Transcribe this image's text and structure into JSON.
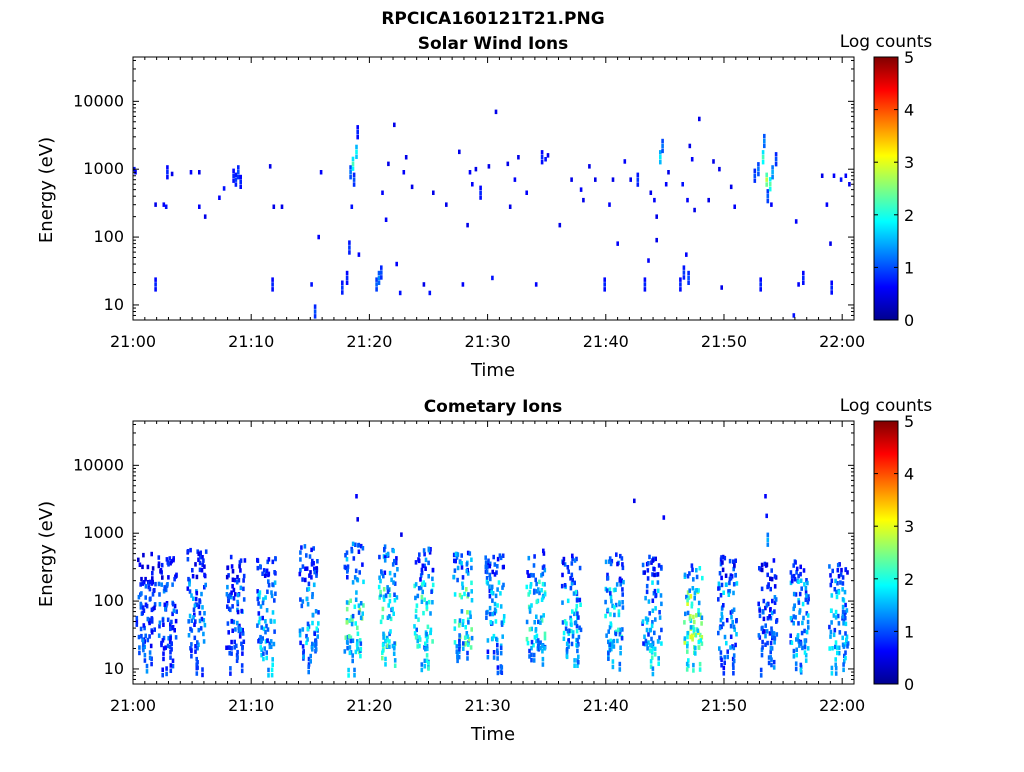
{
  "figure": {
    "title": "RPCICA160121T21.PNG"
  },
  "colormap": [
    "#00008f",
    "#0000ff",
    "#0080ff",
    "#00ffff",
    "#80ff80",
    "#ffff00",
    "#ff8000",
    "#ff0000",
    "#800000"
  ],
  "chart_data": [
    {
      "type": "heatmap",
      "title": "Solar Wind Ions",
      "xlabel": "Time",
      "ylabel": "Energy (eV)",
      "x_ticks": [
        "21:00",
        "21:10",
        "21:20",
        "21:30",
        "21:40",
        "21:50",
        "22:00"
      ],
      "y_ticks": [
        "10",
        "100",
        "1000",
        "10000"
      ],
      "y_scale": "log",
      "ylim": [
        6,
        45000
      ],
      "xlim_minutes": [
        0,
        61
      ],
      "colorbar": {
        "label": "Log counts",
        "ticks": [
          "0",
          "1",
          "2",
          "3",
          "4",
          "5"
        ],
        "range": [
          0,
          5
        ]
      },
      "points": [
        {
          "t": 0.0,
          "e": 1000,
          "v": 0.7
        },
        {
          "t": 0.1,
          "e": 900,
          "v": 0.6
        },
        {
          "t": 1.8,
          "e": 20,
          "v": 0.8
        },
        {
          "t": 1.8,
          "e": 300,
          "v": 0.5
        },
        {
          "t": 2.5,
          "e": 300,
          "v": 0.6
        },
        {
          "t": 2.7,
          "e": 280,
          "v": 0.7
        },
        {
          "t": 2.8,
          "e": 900,
          "v": 0.8
        },
        {
          "t": 3.2,
          "e": 850,
          "v": 0.5
        },
        {
          "t": 4.8,
          "e": 900,
          "v": 0.6
        },
        {
          "t": 5.5,
          "e": 900,
          "v": 0.5
        },
        {
          "t": 5.5,
          "e": 280,
          "v": 0.6
        },
        {
          "t": 6.0,
          "e": 200,
          "v": 0.5
        },
        {
          "t": 7.2,
          "e": 380,
          "v": 0.6
        },
        {
          "t": 7.6,
          "e": 520,
          "v": 0.7
        },
        {
          "t": 8.4,
          "e": 800,
          "v": 0.8
        },
        {
          "t": 8.6,
          "e": 700,
          "v": 0.9
        },
        {
          "t": 8.8,
          "e": 900,
          "v": 1.0
        },
        {
          "t": 9.0,
          "e": 650,
          "v": 0.8
        },
        {
          "t": 11.5,
          "e": 1100,
          "v": 0.5
        },
        {
          "t": 11.7,
          "e": 20,
          "v": 0.8
        },
        {
          "t": 11.8,
          "e": 280,
          "v": 0.5
        },
        {
          "t": 12.5,
          "e": 280,
          "v": 0.5
        },
        {
          "t": 15.0,
          "e": 20,
          "v": 0.7
        },
        {
          "t": 15.3,
          "e": 8,
          "v": 1.0
        },
        {
          "t": 15.6,
          "e": 100,
          "v": 0.6
        },
        {
          "t": 15.8,
          "e": 900,
          "v": 0.6
        },
        {
          "t": 17.6,
          "e": 18,
          "v": 0.9
        },
        {
          "t": 18.0,
          "e": 25,
          "v": 0.8
        },
        {
          "t": 18.2,
          "e": 70,
          "v": 0.9
        },
        {
          "t": 18.3,
          "e": 900,
          "v": 1.2
        },
        {
          "t": 18.5,
          "e": 1200,
          "v": 2.2
        },
        {
          "t": 18.6,
          "e": 700,
          "v": 1.0
        },
        {
          "t": 18.8,
          "e": 1800,
          "v": 1.9
        },
        {
          "t": 18.9,
          "e": 3500,
          "v": 0.8
        },
        {
          "t": 19.0,
          "e": 55,
          "v": 0.6
        },
        {
          "t": 18.4,
          "e": 280,
          "v": 0.7
        },
        {
          "t": 20.5,
          "e": 20,
          "v": 1.1
        },
        {
          "t": 20.7,
          "e": 25,
          "v": 1.3
        },
        {
          "t": 20.9,
          "e": 30,
          "v": 1.0
        },
        {
          "t": 21.0,
          "e": 450,
          "v": 0.6
        },
        {
          "t": 21.3,
          "e": 180,
          "v": 0.6
        },
        {
          "t": 21.5,
          "e": 1200,
          "v": 0.5
        },
        {
          "t": 22.0,
          "e": 4500,
          "v": 0.5
        },
        {
          "t": 22.2,
          "e": 40,
          "v": 0.6
        },
        {
          "t": 22.5,
          "e": 15,
          "v": 0.7
        },
        {
          "t": 22.8,
          "e": 900,
          "v": 0.6
        },
        {
          "t": 23.0,
          "e": 1500,
          "v": 0.5
        },
        {
          "t": 23.5,
          "e": 550,
          "v": 0.5
        },
        {
          "t": 24.5,
          "e": 20,
          "v": 0.5
        },
        {
          "t": 25.0,
          "e": 15,
          "v": 0.7
        },
        {
          "t": 25.3,
          "e": 450,
          "v": 0.5
        },
        {
          "t": 26.4,
          "e": 300,
          "v": 0.5
        },
        {
          "t": 27.5,
          "e": 1800,
          "v": 0.5
        },
        {
          "t": 27.8,
          "e": 20,
          "v": 0.6
        },
        {
          "t": 28.2,
          "e": 150,
          "v": 0.5
        },
        {
          "t": 28.4,
          "e": 900,
          "v": 0.6
        },
        {
          "t": 28.6,
          "e": 600,
          "v": 0.6
        },
        {
          "t": 28.9,
          "e": 1000,
          "v": 0.5
        },
        {
          "t": 29.3,
          "e": 450,
          "v": 0.8
        },
        {
          "t": 30.0,
          "e": 1100,
          "v": 0.5
        },
        {
          "t": 30.3,
          "e": 25,
          "v": 0.7
        },
        {
          "t": 30.6,
          "e": 7000,
          "v": 0.5
        },
        {
          "t": 31.8,
          "e": 280,
          "v": 0.5
        },
        {
          "t": 31.6,
          "e": 1200,
          "v": 0.5
        },
        {
          "t": 32.2,
          "e": 700,
          "v": 0.6
        },
        {
          "t": 32.5,
          "e": 1500,
          "v": 0.5
        },
        {
          "t": 33.2,
          "e": 450,
          "v": 0.6
        },
        {
          "t": 34.0,
          "e": 20,
          "v": 0.6
        },
        {
          "t": 34.5,
          "e": 1500,
          "v": 0.8
        },
        {
          "t": 34.8,
          "e": 1400,
          "v": 0.7
        },
        {
          "t": 35.0,
          "e": 1600,
          "v": 0.5
        },
        {
          "t": 36.0,
          "e": 150,
          "v": 0.5
        },
        {
          "t": 37.0,
          "e": 700,
          "v": 0.5
        },
        {
          "t": 37.8,
          "e": 500,
          "v": 0.6
        },
        {
          "t": 38.0,
          "e": 350,
          "v": 0.5
        },
        {
          "t": 38.5,
          "e": 1100,
          "v": 0.5
        },
        {
          "t": 39.0,
          "e": 700,
          "v": 0.5
        },
        {
          "t": 39.8,
          "e": 20,
          "v": 0.8
        },
        {
          "t": 40.2,
          "e": 300,
          "v": 0.6
        },
        {
          "t": 40.5,
          "e": 700,
          "v": 0.5
        },
        {
          "t": 40.9,
          "e": 80,
          "v": 0.6
        },
        {
          "t": 41.5,
          "e": 1300,
          "v": 0.6
        },
        {
          "t": 42.0,
          "e": 700,
          "v": 0.5
        },
        {
          "t": 42.6,
          "e": 700,
          "v": 0.9
        },
        {
          "t": 43.2,
          "e": 20,
          "v": 0.8
        },
        {
          "t": 43.5,
          "e": 45,
          "v": 0.6
        },
        {
          "t": 43.7,
          "e": 450,
          "v": 0.5
        },
        {
          "t": 44.0,
          "e": 350,
          "v": 0.6
        },
        {
          "t": 44.2,
          "e": 200,
          "v": 0.5
        },
        {
          "t": 44.5,
          "e": 1500,
          "v": 1.8
        },
        {
          "t": 44.7,
          "e": 2200,
          "v": 1.2
        },
        {
          "t": 44.2,
          "e": 90,
          "v": 0.5
        },
        {
          "t": 45.0,
          "e": 600,
          "v": 0.6
        },
        {
          "t": 45.2,
          "e": 900,
          "v": 0.5
        },
        {
          "t": 46.2,
          "e": 20,
          "v": 0.8
        },
        {
          "t": 46.5,
          "e": 30,
          "v": 0.9
        },
        {
          "t": 46.7,
          "e": 55,
          "v": 0.6
        },
        {
          "t": 46.9,
          "e": 25,
          "v": 1.0
        },
        {
          "t": 47.2,
          "e": 1400,
          "v": 0.6
        },
        {
          "t": 46.4,
          "e": 600,
          "v": 0.7
        },
        {
          "t": 46.8,
          "e": 350,
          "v": 0.6
        },
        {
          "t": 47.4,
          "e": 250,
          "v": 0.5
        },
        {
          "t": 47.0,
          "e": 2200,
          "v": 0.5
        },
        {
          "t": 47.8,
          "e": 5500,
          "v": 0.5
        },
        {
          "t": 48.6,
          "e": 350,
          "v": 0.5
        },
        {
          "t": 49.0,
          "e": 1300,
          "v": 0.5
        },
        {
          "t": 49.5,
          "e": 1000,
          "v": 0.5
        },
        {
          "t": 49.7,
          "e": 18,
          "v": 0.5
        },
        {
          "t": 50.5,
          "e": 550,
          "v": 0.5
        },
        {
          "t": 50.8,
          "e": 280,
          "v": 0.6
        },
        {
          "t": 52.5,
          "e": 800,
          "v": 1.0
        },
        {
          "t": 52.8,
          "e": 1000,
          "v": 1.2
        },
        {
          "t": 53.0,
          "e": 20,
          "v": 0.8
        },
        {
          "t": 53.2,
          "e": 1500,
          "v": 2.2
        },
        {
          "t": 53.3,
          "e": 2600,
          "v": 1.3
        },
        {
          "t": 53.5,
          "e": 700,
          "v": 2.8
        },
        {
          "t": 53.6,
          "e": 400,
          "v": 1.1
        },
        {
          "t": 53.8,
          "e": 600,
          "v": 2.3
        },
        {
          "t": 54.0,
          "e": 900,
          "v": 1.5
        },
        {
          "t": 54.3,
          "e": 1400,
          "v": 1.0
        },
        {
          "t": 53.9,
          "e": 300,
          "v": 0.6
        },
        {
          "t": 55.8,
          "e": 7,
          "v": 0.7
        },
        {
          "t": 56.0,
          "e": 170,
          "v": 0.6
        },
        {
          "t": 56.2,
          "e": 20,
          "v": 0.6
        },
        {
          "t": 56.6,
          "e": 25,
          "v": 0.8
        },
        {
          "t": 58.2,
          "e": 800,
          "v": 0.5
        },
        {
          "t": 58.6,
          "e": 300,
          "v": 0.6
        },
        {
          "t": 58.9,
          "e": 80,
          "v": 0.5
        },
        {
          "t": 59.0,
          "e": 18,
          "v": 0.8
        },
        {
          "t": 59.2,
          "e": 800,
          "v": 0.6
        },
        {
          "t": 59.8,
          "e": 700,
          "v": 0.7
        },
        {
          "t": 60.2,
          "e": 800,
          "v": 0.6
        },
        {
          "t": 60.5,
          "e": 600,
          "v": 0.5
        }
      ]
    },
    {
      "type": "heatmap",
      "title": "Cometary Ions",
      "xlabel": "Time",
      "ylabel": "Energy (eV)",
      "x_ticks": [
        "21:00",
        "21:10",
        "21:20",
        "21:30",
        "21:40",
        "21:50",
        "22:00"
      ],
      "y_ticks": [
        "10",
        "100",
        "1000",
        "10000"
      ],
      "y_scale": "log",
      "ylim": [
        6,
        45000
      ],
      "xlim_minutes": [
        0,
        61
      ],
      "colorbar": {
        "label": "Log counts",
        "ticks": [
          "0",
          "1",
          "2",
          "3",
          "4",
          "5"
        ],
        "range": [
          0,
          5
        ]
      },
      "bursts": [
        {
          "t": 1.0,
          "low": 14,
          "high": 500,
          "peak": 1.0,
          "hv": 1.3
        },
        {
          "t": 2.8,
          "low": 14,
          "high": 450,
          "peak": 1.2,
          "hv": 1.0
        },
        {
          "t": 5.3,
          "low": 14,
          "high": 600,
          "peak": 1.3,
          "hv": 1.2
        },
        {
          "t": 8.6,
          "low": 14,
          "high": 450,
          "peak": 1.2,
          "hv": 1.1
        },
        {
          "t": 11.2,
          "low": 14,
          "high": 500,
          "peak": 1.5,
          "hv": 1.9
        },
        {
          "t": 14.8,
          "low": 14,
          "high": 650,
          "peak": 1.6,
          "hv": 1.3
        },
        {
          "t": 18.6,
          "low": 12,
          "high": 800,
          "peak": 2.2,
          "hv": 1.8
        },
        {
          "t": 21.5,
          "low": 14,
          "high": 700,
          "peak": 2.1,
          "hv": 2.4
        },
        {
          "t": 24.5,
          "low": 14,
          "high": 600,
          "peak": 2.0,
          "hv": 2.1
        },
        {
          "t": 27.8,
          "low": 14,
          "high": 550,
          "peak": 2.2,
          "hv": 1.4
        },
        {
          "t": 30.5,
          "low": 14,
          "high": 500,
          "peak": 1.6,
          "hv": 1.2
        },
        {
          "t": 34.0,
          "low": 14,
          "high": 550,
          "peak": 1.9,
          "hv": 1.5
        },
        {
          "t": 37.0,
          "low": 14,
          "high": 500,
          "peak": 1.7,
          "hv": 1.6
        },
        {
          "t": 40.6,
          "low": 14,
          "high": 550,
          "peak": 1.8,
          "hv": 1.7
        },
        {
          "t": 43.8,
          "low": 14,
          "high": 450,
          "peak": 1.5,
          "hv": 2.0
        },
        {
          "t": 47.3,
          "low": 14,
          "high": 350,
          "peak": 2.6,
          "hv": 2.5
        },
        {
          "t": 50.2,
          "low": 14,
          "high": 450,
          "peak": 1.5,
          "hv": 1.2
        },
        {
          "t": 53.6,
          "low": 14,
          "high": 400,
          "peak": 1.2,
          "hv": 1.3
        },
        {
          "t": 56.3,
          "low": 14,
          "high": 400,
          "peak": 1.5,
          "hv": 1.7
        },
        {
          "t": 59.6,
          "low": 14,
          "high": 350,
          "peak": 1.6,
          "hv": 1.8
        }
      ],
      "points": [
        {
          "t": 18.8,
          "e": 3500,
          "v": 0.6
        },
        {
          "t": 18.9,
          "e": 1600,
          "v": 0.5
        },
        {
          "t": 22.6,
          "e": 950,
          "v": 0.5
        },
        {
          "t": 42.3,
          "e": 3000,
          "v": 0.5
        },
        {
          "t": 44.8,
          "e": 1700,
          "v": 0.6
        },
        {
          "t": 53.4,
          "e": 3500,
          "v": 0.6
        },
        {
          "t": 53.5,
          "e": 1800,
          "v": 0.7
        },
        {
          "t": 53.6,
          "e": 800,
          "v": 1.5
        }
      ]
    }
  ]
}
